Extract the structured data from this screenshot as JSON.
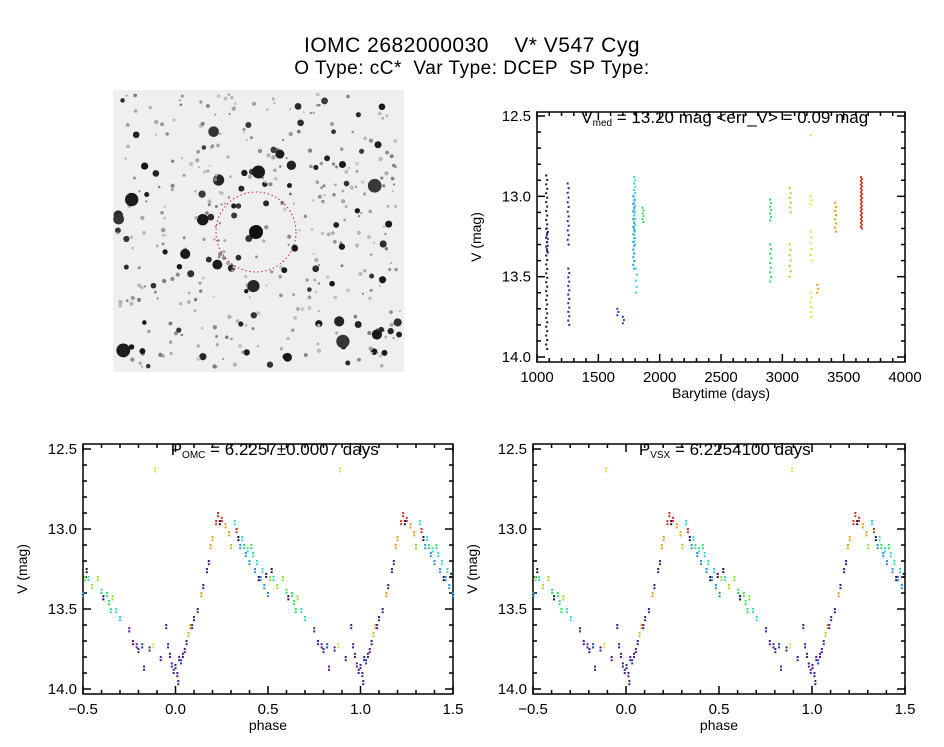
{
  "header": {
    "title": "IOMC 2682000030    V* V547 Cyg",
    "subtitle": "O Type: cC*  Var Type: DCEP  SP Type:"
  },
  "colors": {
    "palette": [
      "#2a0a50",
      "#4b1a8f",
      "#1f3fcf",
      "#2a90e0",
      "#30d8d0",
      "#30e060",
      "#90e030",
      "#d8e040",
      "#e0a020",
      "#d03020"
    ],
    "aperture_circle": "#cc2222"
  },
  "chart_data": [
    {
      "type": "scatter",
      "id": "lightcurve",
      "title_main": "V",
      "title_sub": "med",
      "title_rest": " = 13.20 mag <err_V> = 0.09 mag",
      "xlabel": "Barytime (days)",
      "ylabel": "V (mag)",
      "xlim": [
        1000,
        4000
      ],
      "ylim": [
        12.5,
        14.0
      ],
      "y_inverted": true,
      "xticks": [
        "1000",
        "1500",
        "2000",
        "2500",
        "3000",
        "3500",
        "4000"
      ],
      "yticks": [
        "12.5",
        "13.0",
        "13.5",
        "14.0"
      ],
      "groups": [
        {
          "t": 1075,
          "mag": [
            12.87,
            13.95
          ],
          "n": 40,
          "color": 0
        },
        {
          "t": 1080,
          "mag": [
            13.2,
            13.35
          ],
          "n": 8,
          "color": 1
        },
        {
          "t": 1250,
          "mag": [
            12.92,
            13.3
          ],
          "n": 14,
          "color": 1
        },
        {
          "t": 1255,
          "mag": [
            13.45,
            13.8
          ],
          "n": 14,
          "color": 1
        },
        {
          "t": 1655,
          "mag": [
            13.7,
            13.74
          ],
          "n": 3,
          "color": 2
        },
        {
          "t": 1700,
          "mag": [
            13.75,
            13.79
          ],
          "n": 3,
          "color": 2
        },
        {
          "t": 1785,
          "mag": [
            13.0,
            13.45
          ],
          "n": 20,
          "color": 3
        },
        {
          "t": 1792,
          "mag": [
            12.88,
            13.3
          ],
          "n": 22,
          "color": 4
        },
        {
          "t": 1805,
          "mag": [
            13.45,
            13.6
          ],
          "n": 5,
          "color": 4
        },
        {
          "t": 1860,
          "mag": [
            13.07,
            13.16
          ],
          "n": 6,
          "color": 5
        },
        {
          "t": 2900,
          "mag": [
            13.02,
            13.15
          ],
          "n": 7,
          "color": 5
        },
        {
          "t": 2900,
          "mag": [
            13.3,
            13.53
          ],
          "n": 9,
          "color": 5
        },
        {
          "t": 3060,
          "mag": [
            12.95,
            13.1
          ],
          "n": 6,
          "color": 6
        },
        {
          "t": 3060,
          "mag": [
            13.3,
            13.5
          ],
          "n": 7,
          "color": 6
        },
        {
          "t": 3230,
          "mag": [
            12.62,
            12.62
          ],
          "n": 1,
          "color": 7
        },
        {
          "t": 3230,
          "mag": [
            13.0,
            13.05
          ],
          "n": 3,
          "color": 7
        },
        {
          "t": 3230,
          "mag": [
            13.22,
            13.4
          ],
          "n": 6,
          "color": 7
        },
        {
          "t": 3230,
          "mag": [
            13.6,
            13.75
          ],
          "n": 6,
          "color": 7
        },
        {
          "t": 3285,
          "mag": [
            13.55,
            13.6
          ],
          "n": 3,
          "color": 8
        },
        {
          "t": 3430,
          "mag": [
            13.04,
            13.22
          ],
          "n": 8,
          "color": 8
        },
        {
          "t": 3640,
          "mag": [
            12.88,
            13.2
          ],
          "n": 28,
          "color": 9
        }
      ]
    },
    {
      "type": "scatter",
      "id": "phase_omc",
      "title_main": "P",
      "title_sub": "OMC",
      "title_rest": " = 6.2257±0.0007 days",
      "xlabel": "phase",
      "ylabel": "V (mag)",
      "xlim": [
        -0.5,
        1.5
      ],
      "ylim": [
        12.5,
        14.0
      ],
      "y_inverted": true,
      "xticks": [
        "-0.5",
        "0.0",
        "0.5",
        "1.0",
        "1.5"
      ],
      "yticks": [
        "12.5",
        "13.0",
        "13.5",
        "14.0"
      ],
      "phase_shift": 0
    },
    {
      "type": "scatter",
      "id": "phase_vsx",
      "title_main": "P",
      "title_sub": "VSX",
      "title_rest": " = 6.2254100 days",
      "xlabel": "phase",
      "ylabel": "V (mag)",
      "xlim": [
        -0.5,
        1.5
      ],
      "ylim": [
        12.5,
        14.0
      ],
      "y_inverted": true,
      "xticks": [
        "-0.5",
        "0.0",
        "0.5",
        "1.0",
        "1.5"
      ],
      "yticks": [
        "12.5",
        "13.0",
        "13.5",
        "14.0"
      ],
      "phase_shift": 0.003
    }
  ],
  "phase_points": [
    [
      0.0,
      13.85,
      1
    ],
    [
      0.01,
      13.9,
      1
    ],
    [
      0.015,
      13.95,
      1
    ],
    [
      0.02,
      13.8,
      1
    ],
    [
      0.03,
      13.82,
      2
    ],
    [
      0.04,
      13.78,
      1
    ],
    [
      0.05,
      13.75,
      1
    ],
    [
      0.06,
      13.7,
      1
    ],
    [
      0.07,
      13.65,
      6
    ],
    [
      0.08,
      13.6,
      8
    ],
    [
      0.09,
      13.6,
      1
    ],
    [
      0.1,
      13.55,
      1
    ],
    [
      0.12,
      13.5,
      1
    ],
    [
      0.14,
      13.4,
      8
    ],
    [
      0.15,
      13.35,
      1
    ],
    [
      0.17,
      13.25,
      1
    ],
    [
      0.18,
      13.2,
      1
    ],
    [
      0.19,
      13.1,
      8
    ],
    [
      0.2,
      13.05,
      8
    ],
    [
      0.22,
      12.95,
      9
    ],
    [
      0.23,
      12.9,
      9
    ],
    [
      0.24,
      12.95,
      0
    ],
    [
      0.25,
      12.93,
      9
    ],
    [
      0.27,
      12.97,
      8
    ],
    [
      0.29,
      13.02,
      8
    ],
    [
      0.3,
      13.1,
      6
    ],
    [
      0.32,
      12.95,
      4
    ],
    [
      0.33,
      13.0,
      9
    ],
    [
      0.34,
      13.05,
      0
    ],
    [
      0.35,
      13.1,
      3
    ],
    [
      0.36,
      13.05,
      4
    ],
    [
      0.37,
      13.1,
      5
    ],
    [
      0.38,
      13.15,
      3
    ],
    [
      0.39,
      13.12,
      4
    ],
    [
      0.4,
      13.2,
      3
    ],
    [
      0.41,
      13.1,
      5
    ],
    [
      0.42,
      13.15,
      4
    ],
    [
      0.43,
      13.25,
      3
    ],
    [
      0.44,
      13.2,
      4
    ],
    [
      0.45,
      13.3,
      0
    ],
    [
      0.46,
      13.3,
      3
    ],
    [
      0.47,
      13.25,
      4
    ],
    [
      0.48,
      13.35,
      3
    ],
    [
      0.49,
      13.28,
      0
    ],
    [
      0.5,
      13.4,
      3
    ],
    [
      0.51,
      13.3,
      6
    ],
    [
      0.52,
      13.25,
      0
    ],
    [
      0.53,
      13.3,
      4
    ],
    [
      0.55,
      13.35,
      6
    ],
    [
      0.58,
      13.3,
      6
    ],
    [
      0.6,
      13.38,
      5
    ],
    [
      0.61,
      13.42,
      0
    ],
    [
      0.63,
      13.4,
      5
    ],
    [
      0.64,
      13.45,
      5
    ],
    [
      0.65,
      13.5,
      5
    ],
    [
      0.66,
      13.42,
      6
    ],
    [
      0.68,
      13.5,
      4
    ],
    [
      0.7,
      13.55,
      4
    ],
    [
      0.75,
      13.62,
      1
    ],
    [
      0.77,
      13.7,
      1
    ],
    [
      0.79,
      13.72,
      1
    ],
    [
      0.8,
      13.75,
      1
    ],
    [
      0.82,
      13.72,
      2
    ],
    [
      0.83,
      13.86,
      1
    ],
    [
      0.86,
      13.74,
      1
    ],
    [
      0.88,
      13.72,
      7
    ],
    [
      0.89,
      12.62,
      7
    ],
    [
      0.92,
      13.8,
      1
    ],
    [
      0.95,
      13.6,
      1
    ],
    [
      0.96,
      13.72,
      1
    ],
    [
      0.97,
      13.78,
      1
    ],
    [
      0.98,
      13.84,
      1
    ],
    [
      0.99,
      13.88,
      1
    ]
  ]
}
